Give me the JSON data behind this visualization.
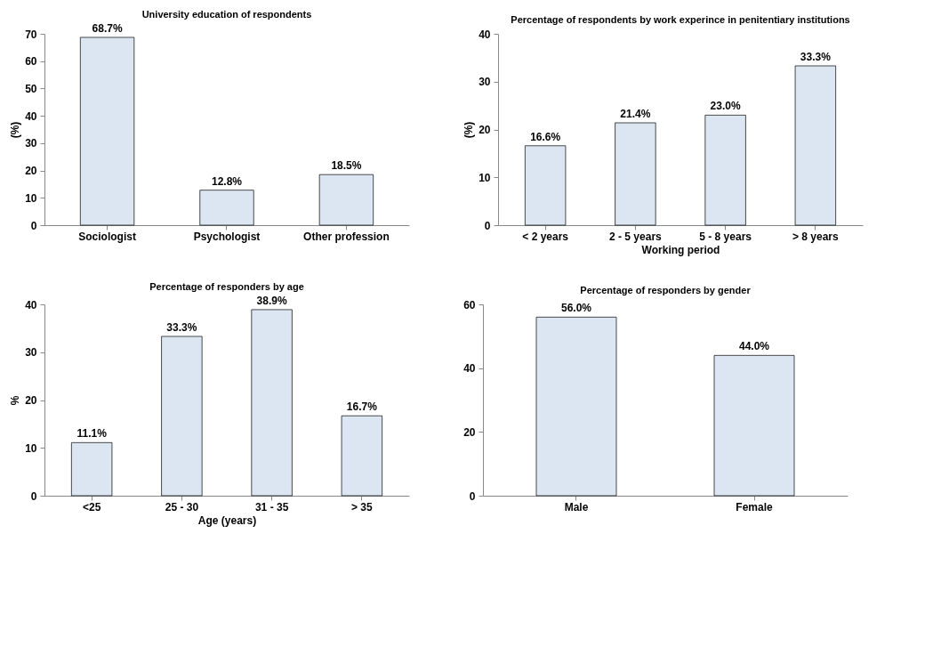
{
  "chart_data": [
    {
      "type": "bar",
      "title": "University education of respondents",
      "ylabel": "(%)",
      "categories": [
        "Sociologist",
        "Psychologist",
        "Other profession"
      ],
      "values": [
        68.7,
        12.8,
        18.5
      ],
      "value_labels": [
        "68.7%",
        "12.8%",
        "18.5%"
      ],
      "color": "#dce6f2",
      "ylim": [
        0,
        70
      ],
      "yticks": [
        0,
        10,
        20,
        30,
        40,
        50,
        60,
        70
      ],
      "grid": false,
      "legend": false
    },
    {
      "type": "bar",
      "title": "Percentage of respondents by work experince in penitentiary institutions",
      "ylabel": "(%)",
      "xlabel": "Working period",
      "categories": [
        "< 2 years",
        "2 - 5 years",
        "5 - 8 years",
        "> 8 years"
      ],
      "values": [
        16.6,
        21.4,
        23.0,
        33.3
      ],
      "value_labels": [
        "16.6%",
        "21.4%",
        "23.0%",
        "33.3%"
      ],
      "color": "#dce6f2",
      "ylim": [
        0,
        40
      ],
      "yticks": [
        0,
        10,
        20,
        30,
        40
      ],
      "grid": false,
      "legend": false
    },
    {
      "type": "bar",
      "title": "Percentage of responders by age",
      "ylabel": "%",
      "xlabel": "Age (years)",
      "categories": [
        "<25",
        "25 - 30",
        "31 - 35",
        "> 35"
      ],
      "values": [
        11.1,
        33.3,
        38.9,
        16.7
      ],
      "value_labels": [
        "11.1%",
        "33.3%",
        "38.9%",
        "16.7%"
      ],
      "color": "#dce6f2",
      "ylim": [
        0,
        40
      ],
      "yticks": [
        0,
        10,
        20,
        30,
        40
      ],
      "grid": false,
      "legend": false
    },
    {
      "type": "bar",
      "title": "Percentage of responders by gender",
      "categories": [
        "Male",
        "Female"
      ],
      "values": [
        56.0,
        44.0
      ],
      "value_labels": [
        "56.0%",
        "44.0%"
      ],
      "color": "#dce6f2",
      "ylim": [
        0,
        60
      ],
      "yticks": [
        0,
        20,
        40,
        60
      ],
      "grid": false,
      "legend": false
    }
  ]
}
